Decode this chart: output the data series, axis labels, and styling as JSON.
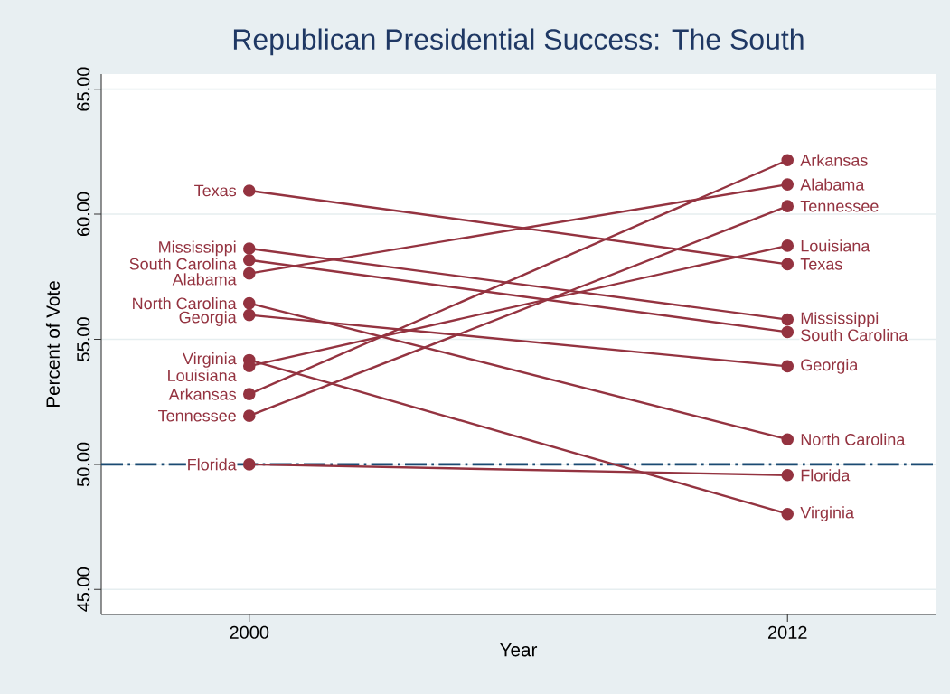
{
  "chart_data": {
    "type": "line",
    "title": "Republican Presidential Success: The South",
    "xlabel": "Year",
    "ylabel": "Percent of Vote",
    "x": [
      2000,
      2012
    ],
    "series": [
      {
        "name": "Texas",
        "color": "#943340",
        "values": [
          60.94,
          58.0
        ]
      },
      {
        "name": "Mississippi",
        "color": "#943340",
        "values": [
          58.63,
          55.79
        ]
      },
      {
        "name": "South Carolina",
        "color": "#943340",
        "values": [
          58.17,
          55.29
        ]
      },
      {
        "name": "Alabama",
        "color": "#943340",
        "values": [
          57.63,
          61.19
        ]
      },
      {
        "name": "North Carolina",
        "color": "#943340",
        "values": [
          56.44,
          51.0
        ]
      },
      {
        "name": "Georgia",
        "color": "#943340",
        "values": [
          55.97,
          53.92
        ]
      },
      {
        "name": "Virginia",
        "color": "#943340",
        "values": [
          54.17,
          48.02
        ]
      },
      {
        "name": "Louisiana",
        "color": "#943340",
        "values": [
          53.93,
          58.74
        ]
      },
      {
        "name": "Arkansas",
        "color": "#943340",
        "values": [
          52.81,
          62.16
        ]
      },
      {
        "name": "Tennessee",
        "color": "#943340",
        "values": [
          51.94,
          60.32
        ]
      },
      {
        "name": "Florida",
        "color": "#943340",
        "values": [
          50.0,
          49.57
        ]
      }
    ],
    "xlim": [
      1996.7,
      2015.3
    ],
    "xticks": [
      2000,
      2012
    ],
    "ylim": [
      44.0,
      65.6
    ],
    "yticks": [
      {
        "value": 45,
        "label": "45.00"
      },
      {
        "value": 50,
        "label": "50.00"
      },
      {
        "value": 55,
        "label": "55.00"
      },
      {
        "value": 60,
        "label": "60.00"
      },
      {
        "value": 65,
        "label": "65.00"
      }
    ],
    "ref_lines": [
      {
        "axis": "y",
        "value": 50,
        "color": "#1a4a72",
        "line_style": "dashdot"
      }
    ],
    "grid": "y",
    "marker": "circle",
    "line_style": "solid"
  }
}
